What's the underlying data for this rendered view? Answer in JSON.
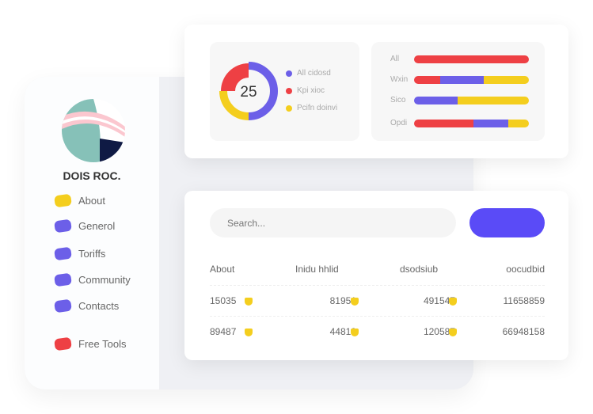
{
  "sidebar": {
    "brand": "DOIS ROC.",
    "items": [
      {
        "label": "About",
        "color": "#f4ce1e"
      },
      {
        "label": "Generol",
        "color": "#6c5fe8"
      },
      {
        "label": "Toriffs",
        "color": "#6c5fe8"
      },
      {
        "label": "Community",
        "color": "#6c5fe8"
      },
      {
        "label": "Contacts",
        "color": "#6c5fe8"
      },
      {
        "label": "Free Tools",
        "color": "#ee4044"
      }
    ]
  },
  "donut": {
    "value": "25",
    "segments": [
      {
        "label": "All cidosd",
        "color": "#6c5fe8",
        "percent": 50
      },
      {
        "label": "Kpi xioc",
        "color": "#ee4044",
        "percent": 25
      },
      {
        "label": "Pcifn doinvi",
        "color": "#f4ce1e",
        "percent": 25
      }
    ]
  },
  "bars": [
    {
      "label": "All",
      "segments": [
        {
          "color": "#ee4044",
          "percent": 100
        }
      ]
    },
    {
      "label": "Wxin",
      "segments": [
        {
          "color": "#ee4044",
          "percent": 23
        },
        {
          "color": "#6c5fe8",
          "percent": 38
        },
        {
          "color": "#f4ce1e",
          "percent": 39
        }
      ]
    },
    {
      "label": "Sico",
      "segments": [
        {
          "color": "#6c5fe8",
          "percent": 38
        },
        {
          "color": "#f4ce1e",
          "percent": 62
        }
      ]
    },
    {
      "label": "Opdi",
      "segments": [
        {
          "color": "#ee4044",
          "percent": 52
        },
        {
          "color": "#6c5fe8",
          "percent": 30
        },
        {
          "color": "#f4ce1e",
          "percent": 18
        }
      ]
    }
  ],
  "search": {
    "placeholder": "Search..."
  },
  "table": {
    "headers": [
      "About",
      "Inidu hhlid",
      "dsodsiub",
      "oocudbid"
    ],
    "rows": [
      [
        "15035",
        "81951",
        "491547",
        "11658859"
      ],
      [
        "89487",
        "44819",
        "120587",
        "66948158"
      ]
    ]
  }
}
